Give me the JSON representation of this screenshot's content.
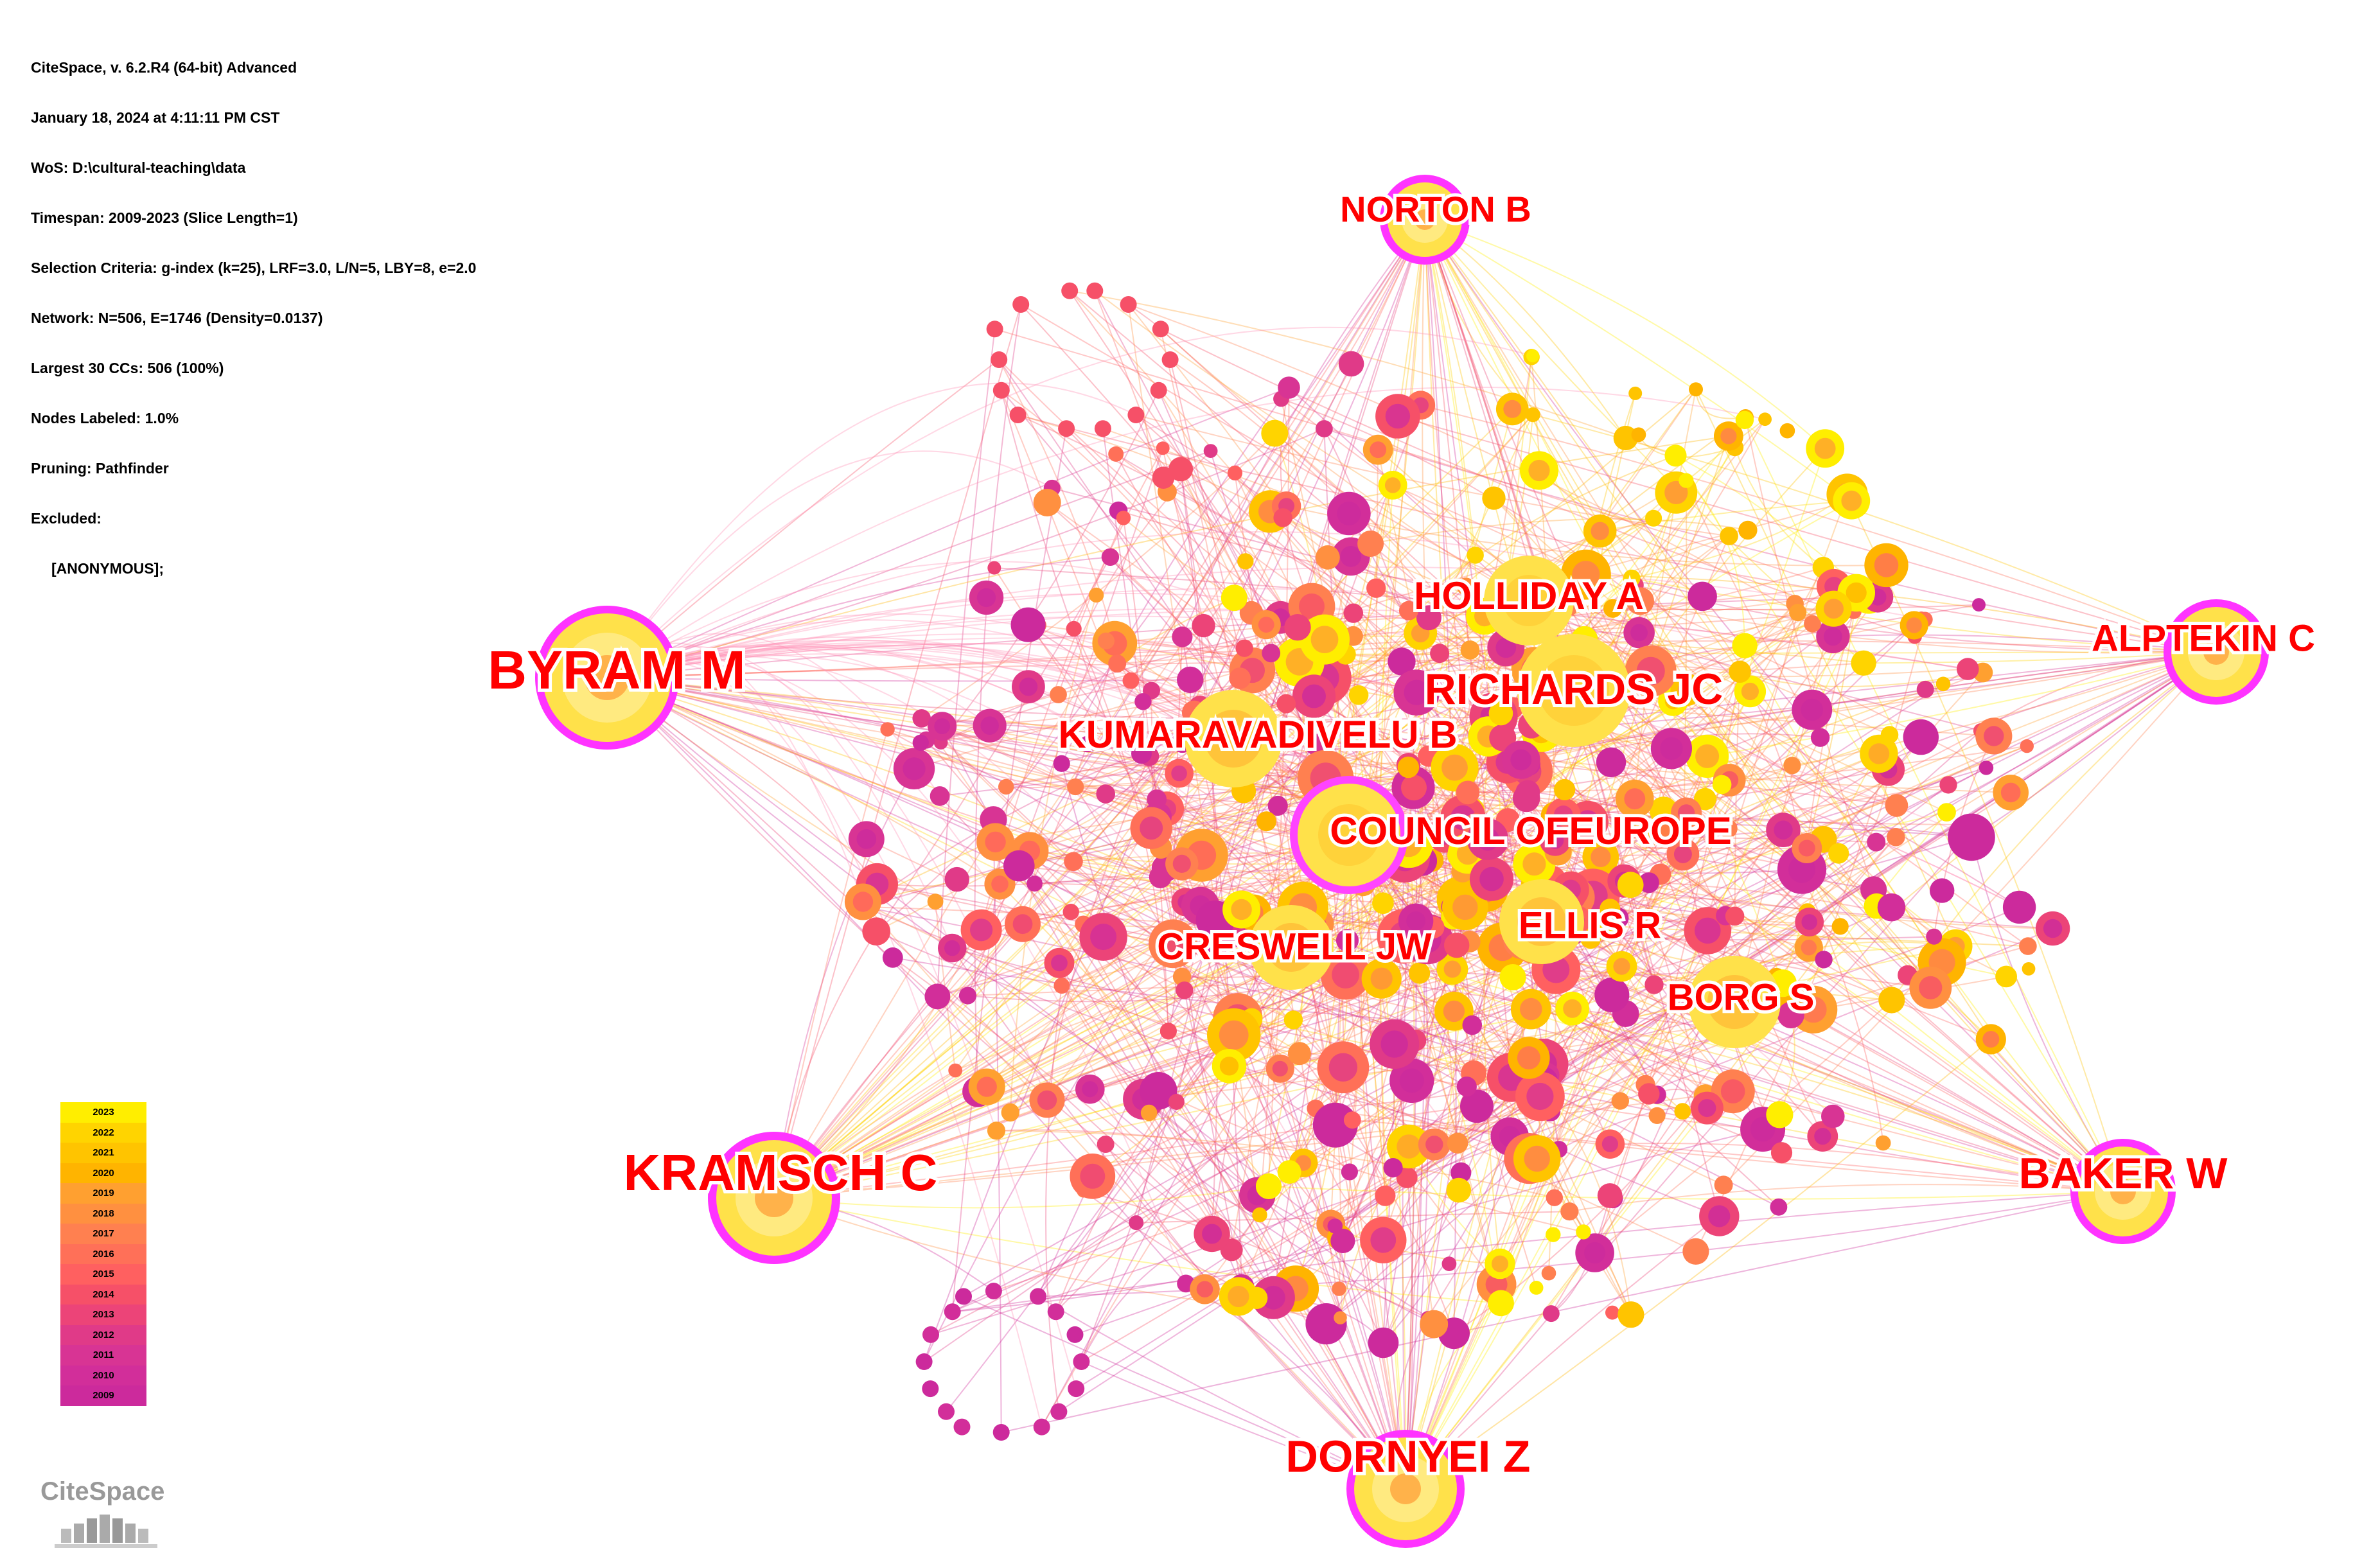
{
  "info_lines": [
    "CiteSpace, v. 6.2.R4 (64-bit) Advanced",
    "January 18, 2024 at 4:11:11 PM CST",
    "WoS: D:\\cultural-teaching\\data",
    "Timespan: 2009-2023 (Slice Length=1)",
    "Selection Criteria: g-index (k=25), LRF=3.0, L/N=5, LBY=8, e=2.0",
    "Network: N=506, E=1746 (Density=0.0137)",
    "Largest 30 CCs: 506 (100%)",
    "Nodes Labeled: 1.0%",
    "Pruning: Pathfinder",
    "Excluded:",
    "     [ANONYMOUS];"
  ],
  "labels": {
    "byram": "BYRAM M",
    "kramsch": "KRAMSCH C",
    "norton": "NORTON B",
    "dornyei": "DORNYEI Z",
    "alptekin": "ALPTEKIN C",
    "baker": "BAKER W",
    "holliday": "HOLLIDAY A",
    "richards": "RICHARDS JC",
    "kumaravadivelu": "KUMARAVADIVELU B",
    "council": "COUNCIL OFEUROPE",
    "ellis": "ELLIS R",
    "creswell": "CRESWELL JW",
    "borg": "BORG S"
  },
  "legend": {
    "years": [
      "2023",
      "2022",
      "2021",
      "2020",
      "2019",
      "2018",
      "2017",
      "2016",
      "2015",
      "2014",
      "2013",
      "2012",
      "2011",
      "2010",
      "2009"
    ],
    "colors": [
      "#ffee00",
      "#ffd400",
      "#ffc400",
      "#ffb400",
      "#ffa030",
      "#ff9040",
      "#ff8050",
      "#ff7058",
      "#ff6060",
      "#f65068",
      "#ec4478",
      "#e03a88",
      "#d83494",
      "#d22e9a",
      "#cc2a9c"
    ]
  },
  "logo_text": "CiteSpace",
  "colors": {
    "label": "#ff0000",
    "ring": "#ff00ff",
    "node_new": "#ffe000",
    "node_old": "#d02a9a"
  }
}
